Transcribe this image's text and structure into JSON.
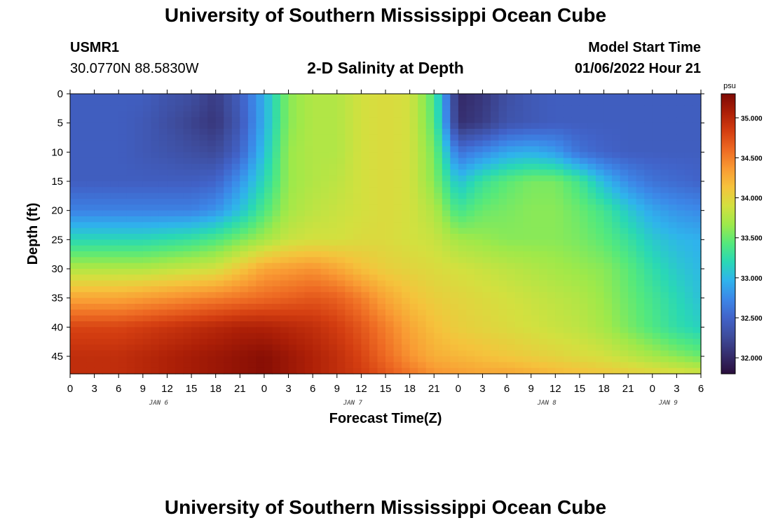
{
  "page": {
    "title": "University of Southern Mississippi Ocean Cube",
    "footer_title": "University of Southern Mississippi Ocean Cube",
    "station": "USMR1",
    "coordinates": "30.0770N  88.5830W",
    "plot_title": "2-D Salinity at Depth",
    "model_start_label": "Model Start Time",
    "model_start_value": "01/06/2022 Hour 21"
  },
  "chart_data": {
    "type": "heatmap",
    "title": "2-D Salinity at Depth",
    "xlabel": "Forecast Time(Z)",
    "ylabel": "Depth (ft)",
    "x_ticks": [
      "0",
      "3",
      "6",
      "9",
      "12",
      "15",
      "18",
      "21",
      "0",
      "3",
      "6",
      "9",
      "12",
      "15",
      "18",
      "21",
      "0",
      "3",
      "6",
      "9",
      "12",
      "15",
      "18",
      "21",
      "0",
      "3",
      "6"
    ],
    "x_date_labels": [
      {
        "label": "JAN 6",
        "tick_index": 4
      },
      {
        "label": "JAN 7",
        "tick_index": 12
      },
      {
        "label": "JAN 8",
        "tick_index": 20
      },
      {
        "label": "JAN 9",
        "tick_index": 25
      }
    ],
    "xlim_hours": [
      0,
      78
    ],
    "y_ticks": [
      0,
      5,
      10,
      15,
      20,
      25,
      30,
      35,
      40,
      45
    ],
    "ylim": [
      0,
      48
    ],
    "y_inverted": true,
    "colorbar": {
      "unit": "psu",
      "range": [
        31.8,
        35.3
      ],
      "ticks": [
        "32.000",
        "32.500",
        "33.000",
        "33.500",
        "34.000",
        "34.500",
        "35.000"
      ],
      "colors": [
        "#2a0e3c",
        "#352d6d",
        "#3e4c9c",
        "#4163c9",
        "#3c87e8",
        "#2fb3ec",
        "#29d8b5",
        "#55e97b",
        "#9ee94a",
        "#d3e03f",
        "#f5c33c",
        "#f99a33",
        "#ee6a23",
        "#d43e11",
        "#ac1f07",
        "#7e0a04"
      ]
    },
    "depth_grid_ft": [
      0,
      5,
      10,
      15,
      20,
      25,
      30,
      35,
      40,
      45,
      48
    ],
    "time_grid_hours": [
      0,
      3,
      6,
      9,
      12,
      15,
      18,
      21,
      24,
      27,
      30,
      33,
      36,
      39,
      42,
      45,
      48,
      51,
      54,
      57,
      60,
      63,
      66,
      69,
      72,
      75,
      78
    ],
    "salinity_psu": [
      [
        32.45,
        32.45,
        32.45,
        32.45,
        32.35,
        32.3,
        32.15,
        32.45,
        32.95,
        33.6,
        33.75,
        33.75,
        33.9,
        33.95,
        33.9,
        33.4,
        32.0,
        32.1,
        32.3,
        32.4,
        32.45,
        32.45,
        32.45,
        32.45,
        32.45,
        32.45,
        32.45
      ],
      [
        32.45,
        32.45,
        32.45,
        32.4,
        32.3,
        32.2,
        32.1,
        32.4,
        32.95,
        33.6,
        33.75,
        33.75,
        33.9,
        33.95,
        33.9,
        33.45,
        32.05,
        32.15,
        32.35,
        32.4,
        32.45,
        32.45,
        32.45,
        32.45,
        32.45,
        32.45,
        32.45
      ],
      [
        32.45,
        32.45,
        32.45,
        32.4,
        32.35,
        32.3,
        32.25,
        32.5,
        33.05,
        33.65,
        33.75,
        33.75,
        33.9,
        33.95,
        33.9,
        33.55,
        32.6,
        32.75,
        32.9,
        32.95,
        32.85,
        32.6,
        32.5,
        32.45,
        32.45,
        32.45,
        32.45
      ],
      [
        32.45,
        32.45,
        32.45,
        32.45,
        32.45,
        32.45,
        32.5,
        32.8,
        33.2,
        33.65,
        33.75,
        33.8,
        33.9,
        33.95,
        33.9,
        33.6,
        33.05,
        33.3,
        33.45,
        33.55,
        33.55,
        33.35,
        33.0,
        32.75,
        32.6,
        32.55,
        32.5
      ],
      [
        32.7,
        32.7,
        32.7,
        32.7,
        32.7,
        32.7,
        32.8,
        33.05,
        33.4,
        33.7,
        33.8,
        33.85,
        33.9,
        33.95,
        33.9,
        33.75,
        33.35,
        33.5,
        33.55,
        33.6,
        33.6,
        33.5,
        33.35,
        33.1,
        32.9,
        32.8,
        32.75
      ],
      [
        33.2,
        33.2,
        33.2,
        33.2,
        33.25,
        33.3,
        33.4,
        33.55,
        33.7,
        33.85,
        33.9,
        33.9,
        33.95,
        33.95,
        33.9,
        33.85,
        33.7,
        33.65,
        33.6,
        33.6,
        33.6,
        33.55,
        33.45,
        33.3,
        33.1,
        33.0,
        32.95
      ],
      [
        33.75,
        33.75,
        33.75,
        33.75,
        33.8,
        33.85,
        33.9,
        34.1,
        34.3,
        34.35,
        34.4,
        34.3,
        34.15,
        34.05,
        34.0,
        33.95,
        33.9,
        33.85,
        33.8,
        33.75,
        33.7,
        33.65,
        33.6,
        33.45,
        33.25,
        33.1,
        33.0
      ],
      [
        34.3,
        34.3,
        34.3,
        34.35,
        34.4,
        34.45,
        34.5,
        34.55,
        34.6,
        34.65,
        34.7,
        34.65,
        34.5,
        34.3,
        34.15,
        34.05,
        34.0,
        33.95,
        33.9,
        33.85,
        33.8,
        33.75,
        33.65,
        33.5,
        33.35,
        33.2,
        33.05
      ],
      [
        34.8,
        34.8,
        34.8,
        34.85,
        34.9,
        34.95,
        35.0,
        35.05,
        35.05,
        35.0,
        34.95,
        34.85,
        34.7,
        34.5,
        34.3,
        34.15,
        34.05,
        34.0,
        33.95,
        33.9,
        33.85,
        33.8,
        33.7,
        33.55,
        33.4,
        33.25,
        33.15
      ],
      [
        34.95,
        34.95,
        34.95,
        35.0,
        35.05,
        35.1,
        35.15,
        35.2,
        35.25,
        35.15,
        35.05,
        34.95,
        34.8,
        34.6,
        34.4,
        34.25,
        34.2,
        34.15,
        34.1,
        34.05,
        34.0,
        33.95,
        33.9,
        33.8,
        33.7,
        33.6,
        33.5
      ],
      [
        34.95,
        34.95,
        34.95,
        35.0,
        35.05,
        35.1,
        35.15,
        35.2,
        35.25,
        35.15,
        35.05,
        34.95,
        34.85,
        34.7,
        34.55,
        34.4,
        34.35,
        34.3,
        34.3,
        34.25,
        34.2,
        34.15,
        34.1,
        34.05,
        34.0,
        33.95,
        33.9
      ]
    ]
  }
}
